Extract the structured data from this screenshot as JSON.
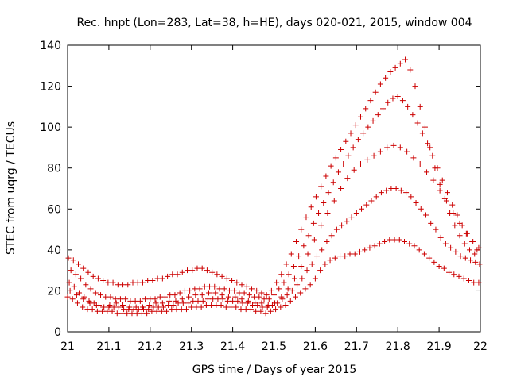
{
  "chart_data": {
    "type": "scatter",
    "title": "Rec. hnpt (Lon=283, Lat=38, h=HE), days 020-021, 2015, window 004",
    "xlabel": "GPS time / Days of year 2015",
    "ylabel": "STEC from uqrg / TECUs",
    "xlim": [
      21,
      22
    ],
    "ylim": [
      0,
      140
    ],
    "xticks": [
      "21",
      "21.1",
      "21.2",
      "21.3",
      "21.4",
      "21.5",
      "21.6",
      "21.7",
      "21.8",
      "21.9",
      "22"
    ],
    "yticks": [
      "0",
      "20",
      "40",
      "60",
      "80",
      "100",
      "120",
      "140"
    ],
    "grid": false,
    "legend": "none",
    "marker": "+",
    "color": "#cc0000",
    "series": [
      {
        "x": [
          21.0,
          21.012,
          21.024,
          21.036,
          21.048,
          21.06,
          21.072,
          21.084,
          21.096,
          21.108,
          21.12,
          21.132,
          21.144,
          21.156,
          21.168,
          21.18,
          21.192,
          21.204,
          21.216,
          21.228,
          21.24,
          21.252,
          21.264,
          21.276,
          21.288,
          21.3,
          21.312,
          21.324,
          21.336,
          21.348,
          21.36,
          21.372,
          21.384,
          21.396,
          21.408,
          21.42,
          21.432,
          21.444,
          21.456,
          21.468,
          21.48,
          21.492,
          21.504,
          21.516,
          21.528,
          21.54,
          21.552,
          21.564,
          21.576,
          21.588,
          21.6,
          21.612,
          21.624,
          21.636,
          21.648,
          21.66,
          21.672,
          21.684,
          21.696,
          21.708,
          21.72,
          21.732,
          21.744,
          21.756,
          21.768,
          21.78,
          21.792,
          21.804,
          21.816,
          21.828,
          21.84,
          21.852,
          21.864,
          21.876,
          21.888,
          21.9,
          21.912,
          21.924,
          21.936,
          21.948,
          21.96,
          21.972,
          21.984,
          21.996
        ],
        "y": [
          17,
          16,
          14,
          12,
          11,
          11,
          10,
          10,
          10,
          10,
          9,
          9,
          9,
          9,
          9,
          9,
          9,
          10,
          10,
          10,
          10,
          11,
          11,
          11,
          11,
          12,
          12,
          12,
          13,
          13,
          13,
          13,
          12,
          12,
          12,
          11,
          11,
          11,
          10,
          10,
          9,
          10,
          11,
          12,
          13,
          15,
          17,
          19,
          21,
          23,
          26,
          30,
          33,
          35,
          36,
          37,
          37,
          38,
          38,
          39,
          40,
          41,
          42,
          43,
          44,
          45,
          45,
          45,
          44,
          43,
          42,
          40,
          38,
          36,
          34,
          32,
          31,
          29,
          28,
          27,
          26,
          25,
          24,
          24
        ]
      },
      {
        "x": [
          21.004,
          21.016,
          21.028,
          21.04,
          21.052,
          21.064,
          21.076,
          21.088,
          21.1,
          21.112,
          21.124,
          21.136,
          21.148,
          21.16,
          21.172,
          21.184,
          21.196,
          21.208,
          21.22,
          21.232,
          21.244,
          21.256,
          21.268,
          21.28,
          21.292,
          21.304,
          21.316,
          21.328,
          21.34,
          21.352,
          21.364,
          21.376,
          21.388,
          21.4,
          21.412,
          21.424,
          21.436,
          21.448,
          21.46,
          21.472,
          21.484,
          21.496,
          21.508,
          21.52,
          21.532,
          21.544,
          21.556,
          21.568,
          21.58,
          21.592,
          21.604,
          21.616,
          21.628,
          21.64,
          21.652,
          21.664,
          21.676,
          21.688,
          21.7,
          21.712,
          21.724,
          21.736,
          21.748,
          21.76,
          21.772,
          21.784,
          21.796,
          21.808,
          21.82,
          21.832,
          21.844,
          21.856,
          21.868,
          21.88,
          21.892,
          21.904,
          21.916,
          21.928,
          21.94,
          21.952,
          21.964,
          21.976,
          21.988,
          21.998
        ],
        "y": [
          24,
          22,
          19,
          17,
          15,
          14,
          13,
          12,
          12,
          12,
          12,
          11,
          11,
          11,
          11,
          11,
          11,
          12,
          12,
          12,
          13,
          13,
          14,
          14,
          14,
          15,
          15,
          15,
          16,
          16,
          16,
          16,
          15,
          15,
          15,
          14,
          14,
          13,
          13,
          12,
          12,
          13,
          14,
          16,
          18,
          20,
          23,
          26,
          30,
          33,
          37,
          40,
          44,
          47,
          50,
          52,
          54,
          56,
          58,
          60,
          62,
          64,
          66,
          68,
          69,
          70,
          70,
          69,
          68,
          66,
          63,
          60,
          57,
          53,
          50,
          46,
          43,
          41,
          39,
          37,
          36,
          35,
          34,
          33
        ]
      },
      {
        "x": [
          21.008,
          21.02,
          21.032,
          21.044,
          21.056,
          21.068,
          21.08,
          21.092,
          21.104,
          21.116,
          21.128,
          21.14,
          21.152,
          21.164,
          21.176,
          21.188,
          21.2,
          21.212,
          21.224,
          21.236,
          21.248,
          21.26,
          21.272,
          21.284,
          21.296,
          21.308,
          21.32,
          21.332,
          21.344,
          21.356,
          21.368,
          21.38,
          21.392,
          21.404,
          21.416,
          21.428,
          21.44,
          21.452,
          21.464,
          21.476,
          21.488,
          21.5,
          21.512,
          21.524,
          21.536,
          21.548,
          21.56,
          21.572,
          21.584,
          21.596,
          21.608,
          21.62,
          21.632,
          21.644,
          21.656,
          21.668,
          21.68,
          21.692,
          21.704,
          21.716,
          21.728,
          21.74,
          21.752,
          21.764,
          21.776,
          21.788,
          21.8,
          21.812,
          21.824,
          21.836,
          21.848,
          21.86,
          21.872,
          21.884,
          21.896,
          21.908,
          21.92,
          21.932,
          21.944,
          21.956,
          21.968,
          21.98,
          21.992
        ],
        "y": [
          30,
          28,
          26,
          23,
          21,
          19,
          18,
          17,
          17,
          16,
          16,
          16,
          15,
          15,
          15,
          16,
          16,
          16,
          17,
          17,
          18,
          18,
          19,
          20,
          20,
          21,
          21,
          22,
          22,
          22,
          21,
          21,
          20,
          20,
          19,
          19,
          18,
          17,
          17,
          16,
          16,
          18,
          21,
          24,
          28,
          32,
          37,
          42,
          47,
          53,
          58,
          63,
          68,
          73,
          78,
          82,
          86,
          90,
          94,
          97,
          100,
          103,
          106,
          109,
          112,
          114,
          115,
          113,
          110,
          106,
          102,
          97,
          92,
          86,
          80,
          74,
          68,
          62,
          57,
          52,
          48,
          44,
          40
        ]
      },
      {
        "x": [
          21.002,
          21.014,
          21.026,
          21.038,
          21.05,
          21.062,
          21.074,
          21.086,
          21.098,
          21.11,
          21.122,
          21.134,
          21.146,
          21.158,
          21.17,
          21.182,
          21.194,
          21.206,
          21.218,
          21.23,
          21.242,
          21.254,
          21.266,
          21.278,
          21.29,
          21.302,
          21.314,
          21.326,
          21.338,
          21.35,
          21.362,
          21.374,
          21.386,
          21.398,
          21.41,
          21.422,
          21.434,
          21.446,
          21.458,
          21.47,
          21.482,
          21.494,
          21.506,
          21.518,
          21.53,
          21.542,
          21.554,
          21.566,
          21.578,
          21.59,
          21.602,
          21.614,
          21.626,
          21.638,
          21.65,
          21.662,
          21.674,
          21.686,
          21.698,
          21.71,
          21.722,
          21.734,
          21.746,
          21.758,
          21.77,
          21.782,
          21.794,
          21.806,
          21.818,
          21.83,
          21.842,
          21.854,
          21.866,
          21.878,
          21.89,
          21.902,
          21.914,
          21.926,
          21.938,
          21.95,
          21.962,
          21.974,
          21.986
        ],
        "y": [
          36,
          35,
          33,
          31,
          29,
          27,
          26,
          25,
          24,
          24,
          23,
          23,
          23,
          24,
          24,
          24,
          25,
          25,
          26,
          26,
          27,
          28,
          28,
          29,
          30,
          30,
          31,
          31,
          30,
          29,
          28,
          27,
          26,
          25,
          24,
          23,
          22,
          21,
          20,
          19,
          18,
          20,
          24,
          28,
          33,
          38,
          44,
          50,
          56,
          61,
          66,
          71,
          76,
          81,
          85,
          89,
          93,
          97,
          101,
          105,
          109,
          113,
          117,
          121,
          124,
          127,
          129,
          131,
          133,
          128,
          120,
          110,
          100,
          90,
          80,
          72,
          65,
          58,
          52,
          47,
          43,
          40,
          38
        ]
      },
      {
        "x": [
          21.006,
          21.022,
          21.038,
          21.054,
          21.07,
          21.086,
          21.102,
          21.118,
          21.134,
          21.15,
          21.166,
          21.182,
          21.198,
          21.214,
          21.23,
          21.246,
          21.262,
          21.278,
          21.294,
          21.31,
          21.326,
          21.342,
          21.358,
          21.374,
          21.39,
          21.406,
          21.422,
          21.438,
          21.454,
          21.47,
          21.486,
          21.502,
          21.518,
          21.534,
          21.55,
          21.566,
          21.582,
          21.598,
          21.614,
          21.63,
          21.646,
          21.662,
          21.678,
          21.694,
          21.71,
          21.726,
          21.742,
          21.758,
          21.774,
          21.79,
          21.806,
          21.822,
          21.838,
          21.854,
          21.87,
          21.886,
          21.902,
          21.918,
          21.934,
          21.95,
          21.966,
          21.982,
          21.996
        ],
        "y": [
          20,
          18,
          16,
          14,
          13,
          12,
          13,
          14,
          13,
          12,
          12,
          12,
          13,
          14,
          14,
          15,
          15,
          16,
          17,
          18,
          18,
          19,
          19,
          18,
          17,
          17,
          16,
          15,
          14,
          14,
          13,
          14,
          17,
          21,
          26,
          32,
          38,
          45,
          52,
          58,
          64,
          70,
          75,
          79,
          82,
          84,
          86,
          88,
          90,
          91,
          90,
          88,
          85,
          82,
          78,
          74,
          69,
          64,
          58,
          53,
          48,
          44,
          41
        ]
      }
    ]
  }
}
